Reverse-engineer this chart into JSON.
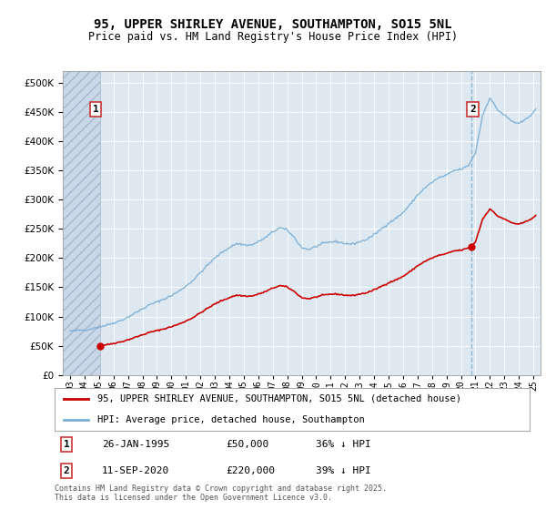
{
  "title": "95, UPPER SHIRLEY AVENUE, SOUTHAMPTON, SO15 5NL",
  "subtitle": "Price paid vs. HM Land Registry's House Price Index (HPI)",
  "annotation1": {
    "label": "1",
    "date_str": "26-JAN-1995",
    "price_str": "£50,000",
    "pct_str": "36% ↓ HPI"
  },
  "annotation2": {
    "label": "2",
    "date_str": "11-SEP-2020",
    "price_str": "£220,000",
    "pct_str": "39% ↓ HPI"
  },
  "legend_line1": "95, UPPER SHIRLEY AVENUE, SOUTHAMPTON, SO15 5NL (detached house)",
  "legend_line2": "HPI: Average price, detached house, Southampton",
  "footer": "Contains HM Land Registry data © Crown copyright and database right 2025.\nThis data is licensed under the Open Government Licence v3.0.",
  "hpi_color": "#7aadd4",
  "price_color": "#cc0000",
  "hatch_color": "#dde5ef",
  "plot_bg_color": "#dde8f0",
  "ylim": [
    0,
    520000
  ],
  "yticks": [
    0,
    50000,
    100000,
    150000,
    200000,
    250000,
    300000,
    350000,
    400000,
    450000,
    500000
  ],
  "purchase1_year": 1995.07,
  "purchase1_price": 50000,
  "purchase2_year": 2020.71,
  "purchase2_price": 220000,
  "dashed_vline": 2020.71,
  "hatch_end": 1995.07,
  "xlim_start": 1992.5,
  "xlim_end": 2025.5
}
